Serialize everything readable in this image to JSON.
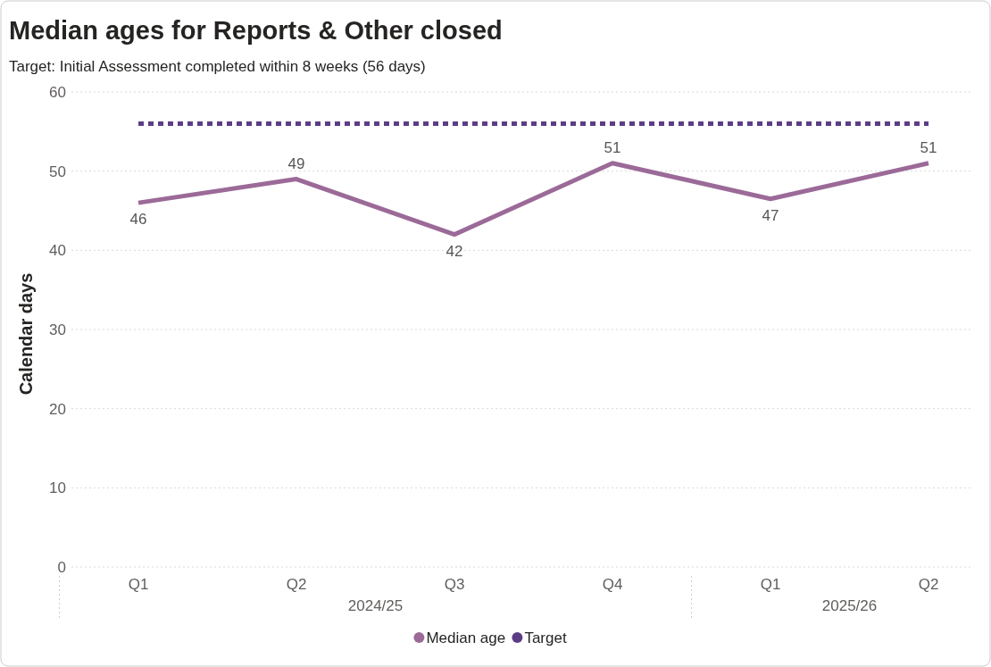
{
  "chart_data": {
    "type": "line",
    "title": "Median ages for Reports & Other closed",
    "subtitle": "Target: Initial Assessment completed within 8 weeks (56 days)",
    "ylabel": "Calendar days",
    "categories": [
      "Q1",
      "Q2",
      "Q3",
      "Q4",
      "Q1",
      "Q2"
    ],
    "series": [
      {
        "name": "Median age",
        "color": "#9b6a98",
        "values": [
          46,
          49,
          42,
          51,
          46.5,
          51
        ],
        "value_labels": [
          "46",
          "49",
          "42",
          "51",
          "47",
          "51"
        ],
        "line_style": "solid"
      },
      {
        "name": "Target",
        "color": "#5c3d85",
        "values": [
          56,
          56,
          56,
          56,
          56,
          56
        ],
        "line_style": "dashed"
      }
    ],
    "annotations": [
      "2024/25",
      "2025/26"
    ],
    "ylim": [
      0,
      60
    ],
    "yticks": [
      0,
      10,
      20,
      30,
      40,
      50,
      60
    ],
    "grid": "y",
    "legend": "bottom",
    "marker": "none"
  }
}
